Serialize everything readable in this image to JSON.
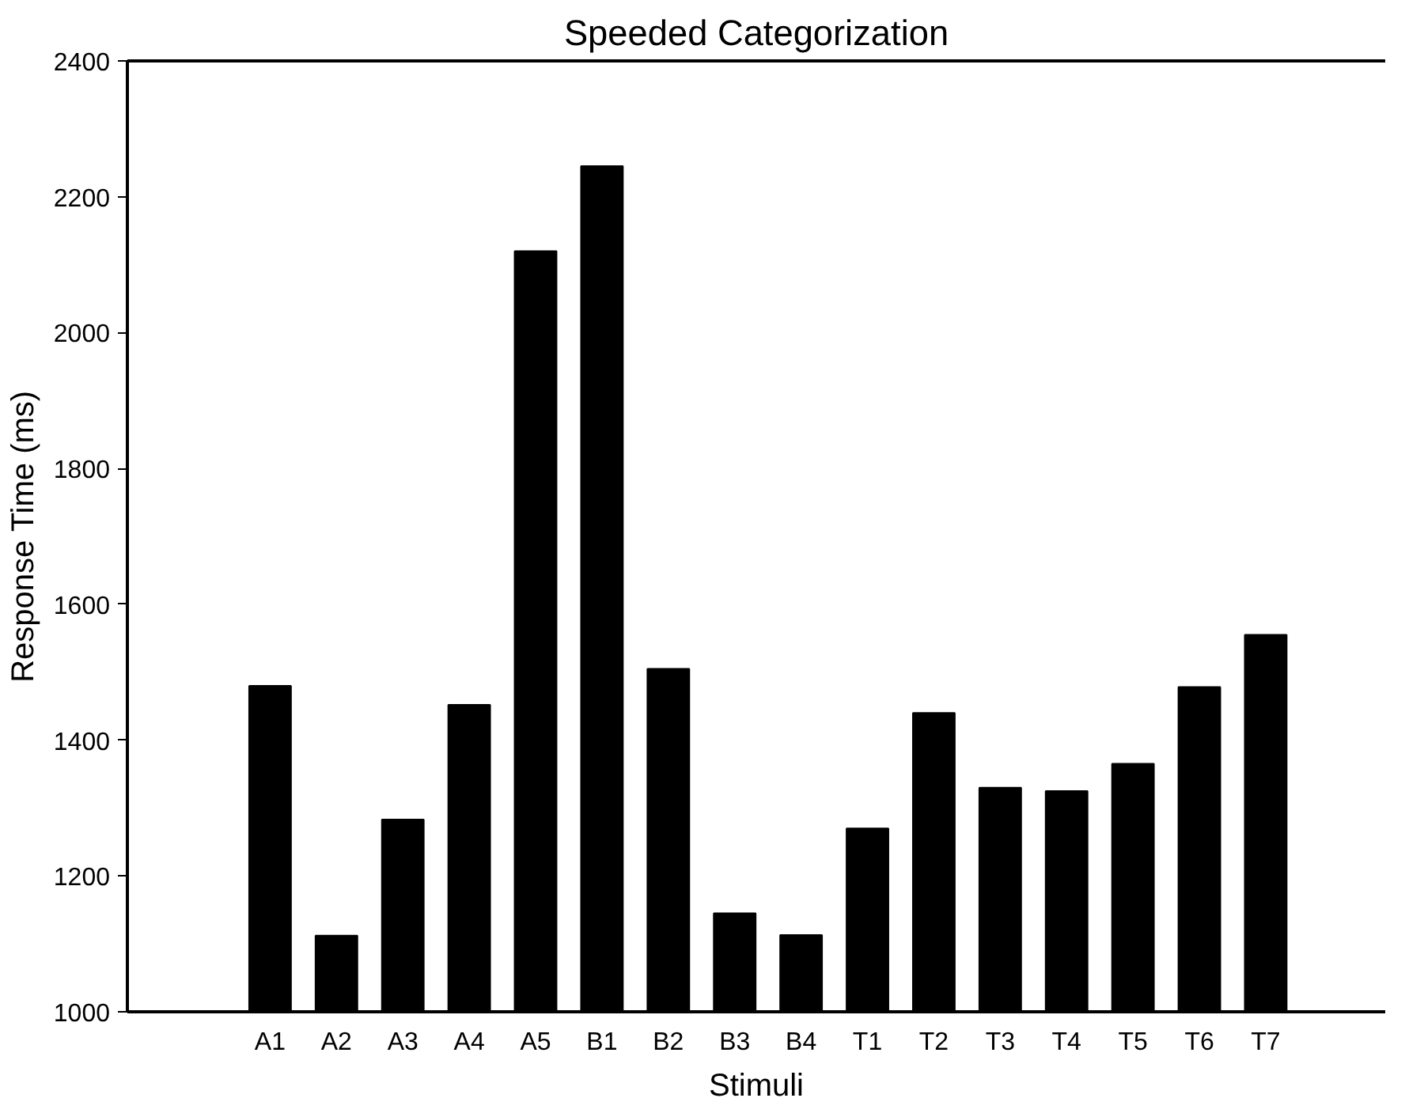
{
  "chart_data": {
    "type": "bar",
    "title": "Speeded Categorization",
    "xlabel": "Stimuli",
    "ylabel": "Response Time (ms)",
    "categories": [
      "A1",
      "A2",
      "A3",
      "A4",
      "A5",
      "B1",
      "B2",
      "B3",
      "B4",
      "T1",
      "T2",
      "T3",
      "T4",
      "T5",
      "T6",
      "T7"
    ],
    "values": [
      1480,
      1112,
      1283,
      1452,
      2120,
      2245,
      1505,
      1145,
      1113,
      1270,
      1440,
      1330,
      1325,
      1365,
      1478,
      1555
    ],
    "color": "#000000",
    "ylim": [
      1000,
      2400
    ],
    "yticks": [
      1000,
      1200,
      1400,
      1600,
      1800,
      2000,
      2200,
      2400
    ],
    "grid": false
  }
}
